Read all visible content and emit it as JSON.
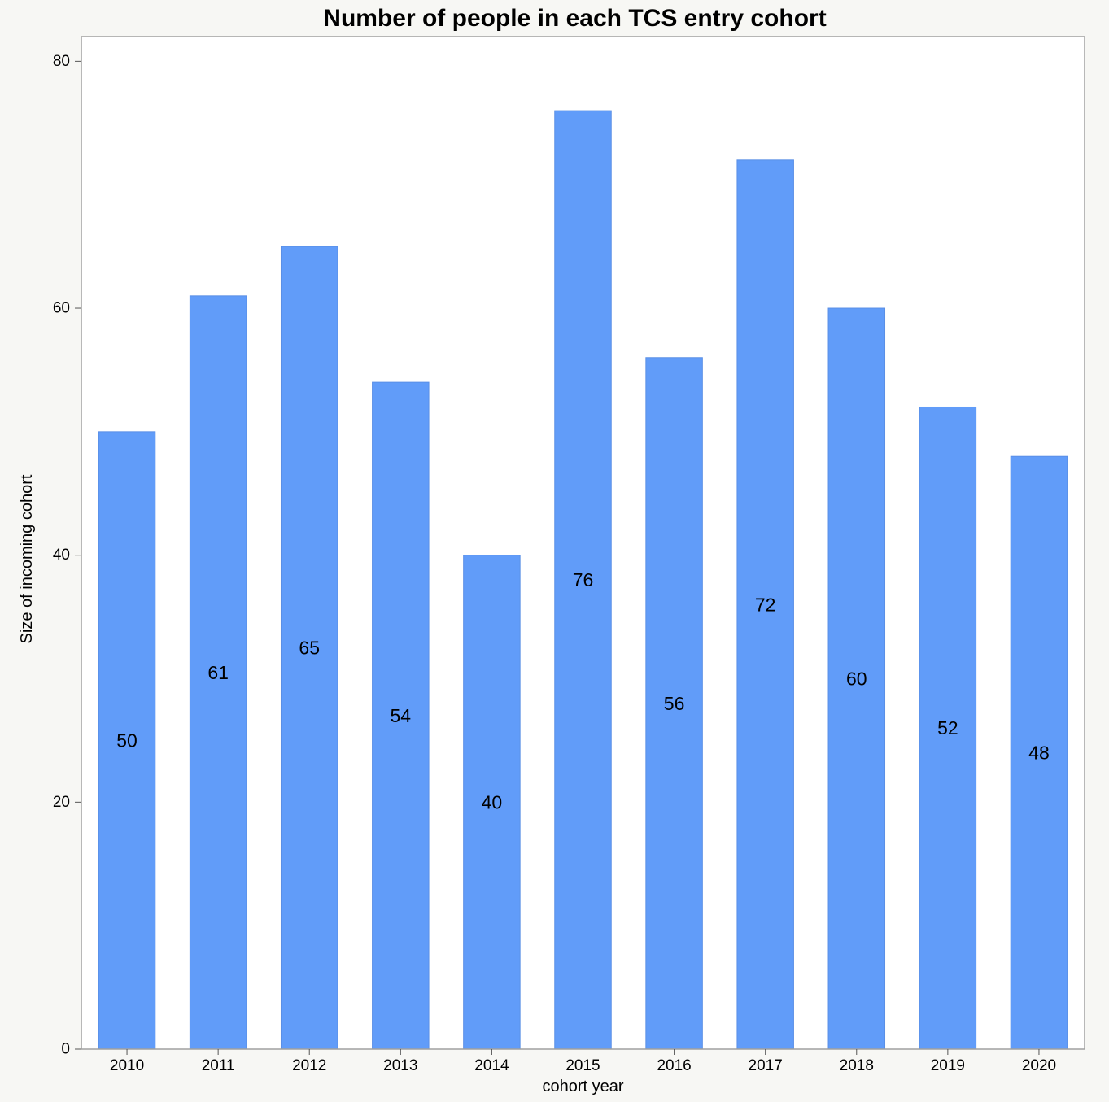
{
  "chart_data": {
    "type": "bar",
    "title": "Number of people in each TCS entry cohort",
    "xlabel": "cohort year",
    "ylabel": "Size of incoming cohort",
    "categories": [
      "2010",
      "2011",
      "2012",
      "2013",
      "2014",
      "2015",
      "2016",
      "2017",
      "2018",
      "2019",
      "2020"
    ],
    "values": [
      50,
      61,
      65,
      54,
      40,
      76,
      56,
      72,
      60,
      52,
      48
    ],
    "data_labels": [
      "50",
      "61",
      "65",
      "54",
      "40",
      "76",
      "56",
      "72",
      "60",
      "52",
      "48"
    ],
    "ylim": [
      0,
      82
    ],
    "yticks": [
      "0",
      "20",
      "40",
      "60",
      "80"
    ],
    "grid": false,
    "legend": "none",
    "colors": {
      "bar": "#619cf9",
      "bar_edge": "#5a8fe6",
      "frame": "#a0a0a0",
      "plot_bg": "#ffffff",
      "page_bg": "#f7f7f4"
    }
  }
}
